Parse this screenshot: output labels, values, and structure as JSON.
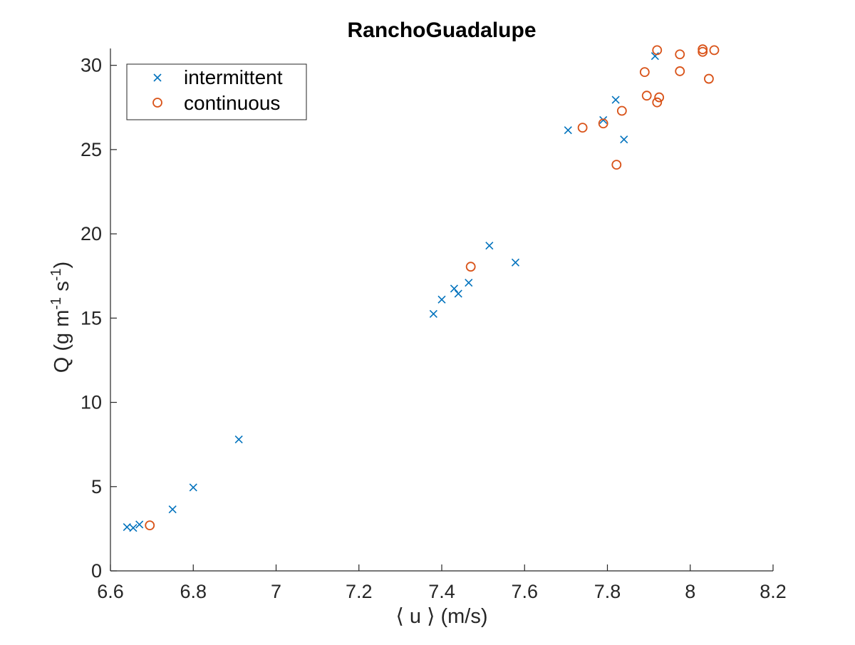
{
  "chart_data": {
    "type": "scatter",
    "title": "RanchoGuadalupe",
    "xlabel": "⟨ u ⟩ (m/s)",
    "ylabel_parts": [
      "Q (g m",
      "-1",
      " s",
      "-1",
      ")"
    ],
    "xlim": [
      6.6,
      8.2
    ],
    "ylim": [
      0,
      31
    ],
    "xticks": [
      6.6,
      6.8,
      7.0,
      7.2,
      7.4,
      7.6,
      7.8,
      8.0,
      8.2
    ],
    "xtick_labels": [
      "6.6",
      "6.8",
      "7",
      "7.2",
      "7.4",
      "7.6",
      "7.8",
      "8",
      "8.2"
    ],
    "yticks": [
      0,
      5,
      10,
      15,
      20,
      25,
      30
    ],
    "ytick_labels": [
      "0",
      "5",
      "10",
      "15",
      "20",
      "25",
      "30"
    ],
    "grid": false,
    "legend_position": "top-left",
    "series": [
      {
        "name": "intermittent",
        "marker": "x",
        "color": "#0072BD",
        "points": [
          [
            6.64,
            2.6
          ],
          [
            6.655,
            2.55
          ],
          [
            6.67,
            2.75
          ],
          [
            6.75,
            3.65
          ],
          [
            6.8,
            4.95
          ],
          [
            6.91,
            7.8
          ],
          [
            7.38,
            15.25
          ],
          [
            7.4,
            16.1
          ],
          [
            7.43,
            16.75
          ],
          [
            7.44,
            16.45
          ],
          [
            7.465,
            17.1
          ],
          [
            7.515,
            19.3
          ],
          [
            7.578,
            18.3
          ],
          [
            7.705,
            26.15
          ],
          [
            7.79,
            26.75
          ],
          [
            7.82,
            27.95
          ],
          [
            7.84,
            25.6
          ],
          [
            7.915,
            30.55
          ]
        ]
      },
      {
        "name": "continuous",
        "marker": "o",
        "color": "#D95319",
        "points": [
          [
            6.695,
            2.7
          ],
          [
            7.47,
            18.05
          ],
          [
            7.74,
            26.3
          ],
          [
            7.79,
            26.55
          ],
          [
            7.822,
            24.1
          ],
          [
            7.835,
            27.3
          ],
          [
            7.89,
            29.6
          ],
          [
            7.895,
            28.2
          ],
          [
            7.92,
            30.9
          ],
          [
            7.92,
            27.8
          ],
          [
            7.925,
            28.1
          ],
          [
            7.975,
            29.65
          ],
          [
            7.975,
            30.65
          ],
          [
            8.03,
            30.8
          ],
          [
            8.03,
            30.95
          ],
          [
            8.045,
            29.2
          ],
          [
            8.058,
            30.9
          ]
        ]
      }
    ]
  }
}
